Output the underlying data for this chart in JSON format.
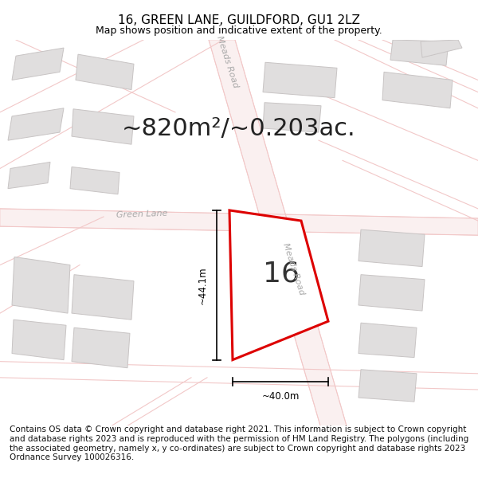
{
  "title": "16, GREEN LANE, GUILDFORD, GU1 2LZ",
  "subtitle": "Map shows position and indicative extent of the property.",
  "area_text": "~820m²/~0.203ac.",
  "property_number": "16",
  "dim_width": "~40.0m",
  "dim_height": "~44.1m",
  "footer": "Contains OS data © Crown copyright and database right 2021. This information is subject to Crown copyright and database rights 2023 and is reproduced with the permission of HM Land Registry. The polygons (including the associated geometry, namely x, y co-ordinates) are subject to Crown copyright and database rights 2023 Ordnance Survey 100026316.",
  "bg_color": "#ffffff",
  "map_bg_color": "#ffffff",
  "road_color": "#f2c8c8",
  "road_outline_color": "#e8b0b0",
  "road_fill_color": "#faf0f0",
  "property_fill": "#ffffff",
  "property_edge": "#dd0000",
  "building_fill": "#e0dede",
  "building_edge": "#c8c4c4",
  "road_label_color": "#aaaaaa",
  "dim_color": "#000000",
  "title_fontsize": 11,
  "subtitle_fontsize": 9,
  "area_fontsize": 22,
  "number_fontsize": 26,
  "footer_fontsize": 7.5,
  "road_label_fontsize": 8
}
